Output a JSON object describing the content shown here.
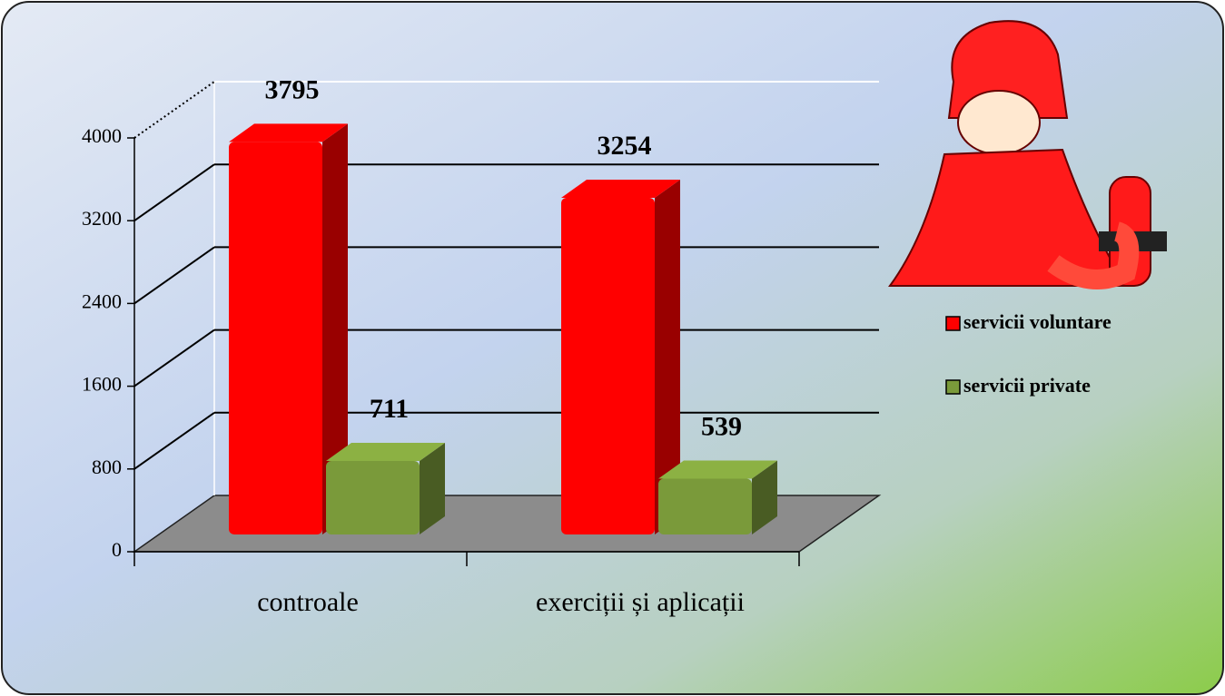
{
  "chart_data": {
    "type": "bar3d",
    "categories": [
      "controale",
      "exerciții și aplicații"
    ],
    "series": [
      {
        "name": "servicii voluntare",
        "color": "#ff0000",
        "values": [
          3795,
          3254
        ]
      },
      {
        "name": "servicii private",
        "color": "#7a9a3a",
        "values": [
          711,
          539
        ]
      }
    ],
    "ylim": [
      0,
      4000
    ],
    "yticks": [
      0,
      800,
      1600,
      2400,
      3200,
      4000
    ],
    "grid": true,
    "legend": "right"
  }
}
